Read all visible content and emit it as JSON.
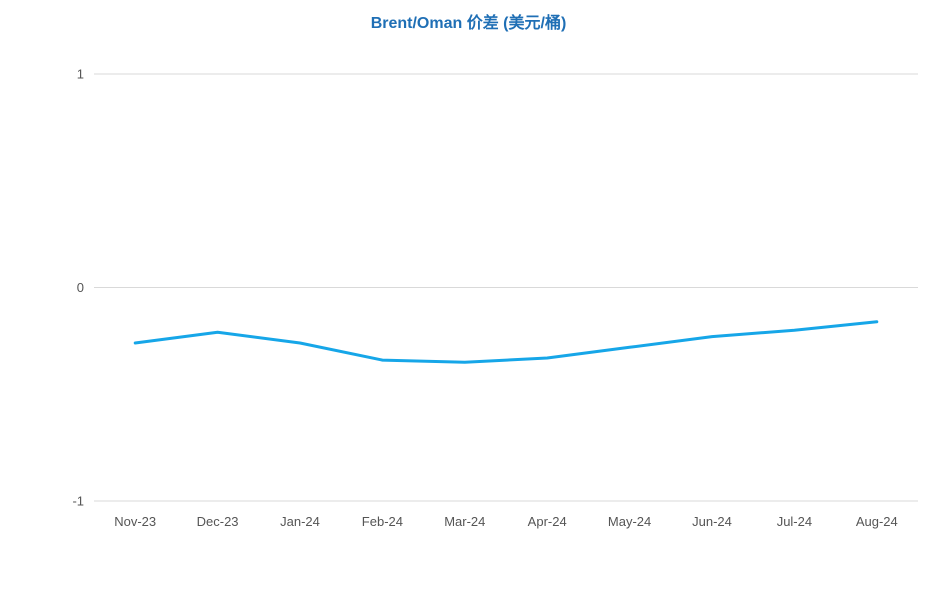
{
  "chart_data": {
    "type": "line",
    "title": "Brent/Oman 价差 (美元/桶)",
    "categories": [
      "Nov-23",
      "Dec-23",
      "Jan-24",
      "Feb-24",
      "Mar-24",
      "Apr-24",
      "May-24",
      "Jun-24",
      "Jul-24",
      "Aug-24"
    ],
    "series": [
      {
        "values": [
          -0.26,
          -0.21,
          -0.26,
          -0.34,
          -0.35,
          -0.33,
          -0.28,
          -0.23,
          -0.2,
          -0.16
        ],
        "color": "#16a6e8"
      }
    ],
    "yticks": [
      "1",
      "0",
      "-1"
    ],
    "ylim": [
      -1,
      1
    ],
    "grid": true,
    "legend": "none",
    "gridline_color": "#d9d9d9"
  }
}
